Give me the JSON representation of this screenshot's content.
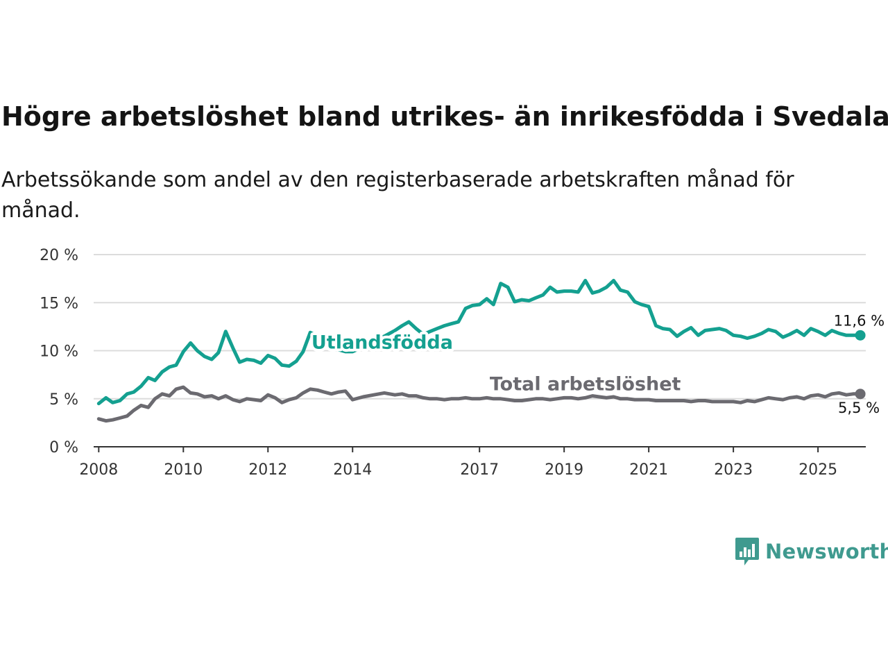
{
  "title": "Högre arbetslöshet bland utrikes- än inrikesfödda i Svedala",
  "subtitle": "Arbetssökande som andel av den registerbaserade arbetskraften månad för månad.",
  "brand": {
    "name": "Newsworthy",
    "color": "#3f9a8f"
  },
  "chart_data": {
    "type": "line",
    "title": "Högre arbetslöshet bland utrikes- än inrikesfödda i Svedala",
    "xlabel": "",
    "ylabel": "",
    "xlim": [
      2007.88,
      2026.13
    ],
    "ylim": [
      0,
      20
    ],
    "grid": true,
    "y_ticks": [
      0,
      5,
      10,
      15,
      20
    ],
    "y_tick_labels": [
      "0 %",
      "5 %",
      "10 %",
      "15 %",
      "20 %"
    ],
    "x_ticks": [
      2008,
      2010,
      2012,
      2014,
      2017,
      2019,
      2021,
      2023,
      2025
    ],
    "x_tick_labels": [
      "2008",
      "2010",
      "2012",
      "2014",
      "2017",
      "2019",
      "2021",
      "2023",
      "2025"
    ],
    "series": [
      {
        "name": "Utlandsfödda",
        "color": "#14a090",
        "end_label": "11,6 %",
        "x": [
          2008.0,
          2008.17,
          2008.33,
          2008.5,
          2008.67,
          2008.83,
          2009.0,
          2009.17,
          2009.33,
          2009.5,
          2009.67,
          2009.83,
          2010.0,
          2010.17,
          2010.33,
          2010.5,
          2010.67,
          2010.83,
          2011.0,
          2011.17,
          2011.33,
          2011.5,
          2011.67,
          2011.83,
          2012.0,
          2012.17,
          2012.33,
          2012.5,
          2012.67,
          2012.83,
          2013.0,
          2013.17,
          2013.33,
          2013.5,
          2013.67,
          2013.83,
          2014.0,
          2014.25,
          2014.5,
          2014.75,
          2015.0,
          2015.17,
          2015.33,
          2015.5,
          2015.67,
          2015.83,
          2016.0,
          2016.17,
          2016.33,
          2016.5,
          2016.67,
          2016.83,
          2017.0,
          2017.17,
          2017.33,
          2017.5,
          2017.67,
          2017.83,
          2018.0,
          2018.17,
          2018.33,
          2018.5,
          2018.67,
          2018.83,
          2019.0,
          2019.17,
          2019.33,
          2019.5,
          2019.67,
          2019.83,
          2020.0,
          2020.17,
          2020.33,
          2020.5,
          2020.67,
          2020.83,
          2021.0,
          2021.17,
          2021.33,
          2021.5,
          2021.67,
          2021.83,
          2022.0,
          2022.17,
          2022.33,
          2022.5,
          2022.67,
          2022.83,
          2023.0,
          2023.17,
          2023.33,
          2023.5,
          2023.67,
          2023.83,
          2024.0,
          2024.17,
          2024.33,
          2024.5,
          2024.67,
          2024.83,
          2025.0,
          2025.17,
          2025.33,
          2025.5,
          2025.67,
          2025.83,
          2026.0
        ],
        "values": [
          4.5,
          5.1,
          4.6,
          4.8,
          5.5,
          5.7,
          6.3,
          7.2,
          6.9,
          7.8,
          8.3,
          8.5,
          9.9,
          10.8,
          10.0,
          9.4,
          9.1,
          9.8,
          12.0,
          10.3,
          8.8,
          9.1,
          9.0,
          8.7,
          9.5,
          9.2,
          8.5,
          8.4,
          8.9,
          9.9,
          11.9,
          11.5,
          11.0,
          10.6,
          10.1,
          9.9,
          9.9,
          10.4,
          11.1,
          11.5,
          12.1,
          12.6,
          13.0,
          12.3,
          11.7,
          12.0,
          12.3,
          12.6,
          12.8,
          13.0,
          14.4,
          14.7,
          14.8,
          15.4,
          14.8,
          17.0,
          16.6,
          15.1,
          15.3,
          15.2,
          15.5,
          15.8,
          16.6,
          16.1,
          16.2,
          16.2,
          16.1,
          17.3,
          16.0,
          16.2,
          16.6,
          17.3,
          16.3,
          16.1,
          15.1,
          14.8,
          14.6,
          12.6,
          12.3,
          12.2,
          11.5,
          12.0,
          12.4,
          11.6,
          12.1,
          12.2,
          12.3,
          12.1,
          11.6,
          11.5,
          11.3,
          11.5,
          11.8,
          12.2,
          12.0,
          11.4,
          11.7,
          12.1,
          11.6,
          12.3,
          12.0,
          11.6,
          12.1,
          11.8,
          11.6,
          11.6,
          11.6
        ]
      },
      {
        "name": "Total arbetslöshet",
        "color": "#6b6a70",
        "end_label": "5,5 %",
        "x": [
          2008.0,
          2008.17,
          2008.33,
          2008.5,
          2008.67,
          2008.83,
          2009.0,
          2009.17,
          2009.33,
          2009.5,
          2009.67,
          2009.83,
          2010.0,
          2010.17,
          2010.33,
          2010.5,
          2010.67,
          2010.83,
          2011.0,
          2011.17,
          2011.33,
          2011.5,
          2011.67,
          2011.83,
          2012.0,
          2012.17,
          2012.33,
          2012.5,
          2012.67,
          2012.83,
          2013.0,
          2013.17,
          2013.33,
          2013.5,
          2013.67,
          2013.83,
          2014.0,
          2014.25,
          2014.5,
          2014.75,
          2015.0,
          2015.17,
          2015.33,
          2015.5,
          2015.67,
          2015.83,
          2016.0,
          2016.17,
          2016.33,
          2016.5,
          2016.67,
          2016.83,
          2017.0,
          2017.17,
          2017.33,
          2017.5,
          2017.67,
          2017.83,
          2018.0,
          2018.17,
          2018.33,
          2018.5,
          2018.67,
          2018.83,
          2019.0,
          2019.17,
          2019.33,
          2019.5,
          2019.67,
          2019.83,
          2020.0,
          2020.17,
          2020.33,
          2020.5,
          2020.67,
          2020.83,
          2021.0,
          2021.17,
          2021.33,
          2021.5,
          2021.67,
          2021.83,
          2022.0,
          2022.17,
          2022.33,
          2022.5,
          2022.67,
          2022.83,
          2023.0,
          2023.17,
          2023.33,
          2023.5,
          2023.67,
          2023.83,
          2024.0,
          2024.17,
          2024.33,
          2024.5,
          2024.67,
          2024.83,
          2025.0,
          2025.17,
          2025.33,
          2025.5,
          2025.67,
          2025.83,
          2026.0
        ],
        "values": [
          2.9,
          2.7,
          2.8,
          3.0,
          3.2,
          3.8,
          4.3,
          4.1,
          5.0,
          5.5,
          5.3,
          6.0,
          6.2,
          5.6,
          5.5,
          5.2,
          5.3,
          5.0,
          5.3,
          4.9,
          4.7,
          5.0,
          4.9,
          4.8,
          5.4,
          5.1,
          4.6,
          4.9,
          5.1,
          5.6,
          6.0,
          5.9,
          5.7,
          5.5,
          5.7,
          5.8,
          4.9,
          5.2,
          5.4,
          5.6,
          5.4,
          5.5,
          5.3,
          5.3,
          5.1,
          5.0,
          5.0,
          4.9,
          5.0,
          5.0,
          5.1,
          5.0,
          5.0,
          5.1,
          5.0,
          5.0,
          4.9,
          4.8,
          4.8,
          4.9,
          5.0,
          5.0,
          4.9,
          5.0,
          5.1,
          5.1,
          5.0,
          5.1,
          5.3,
          5.2,
          5.1,
          5.2,
          5.0,
          5.0,
          4.9,
          4.9,
          4.9,
          4.8,
          4.8,
          4.8,
          4.8,
          4.8,
          4.7,
          4.8,
          4.8,
          4.7,
          4.7,
          4.7,
          4.7,
          4.6,
          4.8,
          4.7,
          4.9,
          5.1,
          5.0,
          4.9,
          5.1,
          5.2,
          5.0,
          5.3,
          5.4,
          5.2,
          5.5,
          5.6,
          5.4,
          5.5,
          5.5
        ]
      }
    ],
    "annotations": [
      {
        "text": "Utlandsfödda",
        "series": "Utlandsfödda",
        "x": 2014.7,
        "y": 10.2
      },
      {
        "text": "Total arbetslöshet",
        "series": "Total arbetslöshet",
        "x": 2019.5,
        "y": 5.9
      }
    ]
  }
}
